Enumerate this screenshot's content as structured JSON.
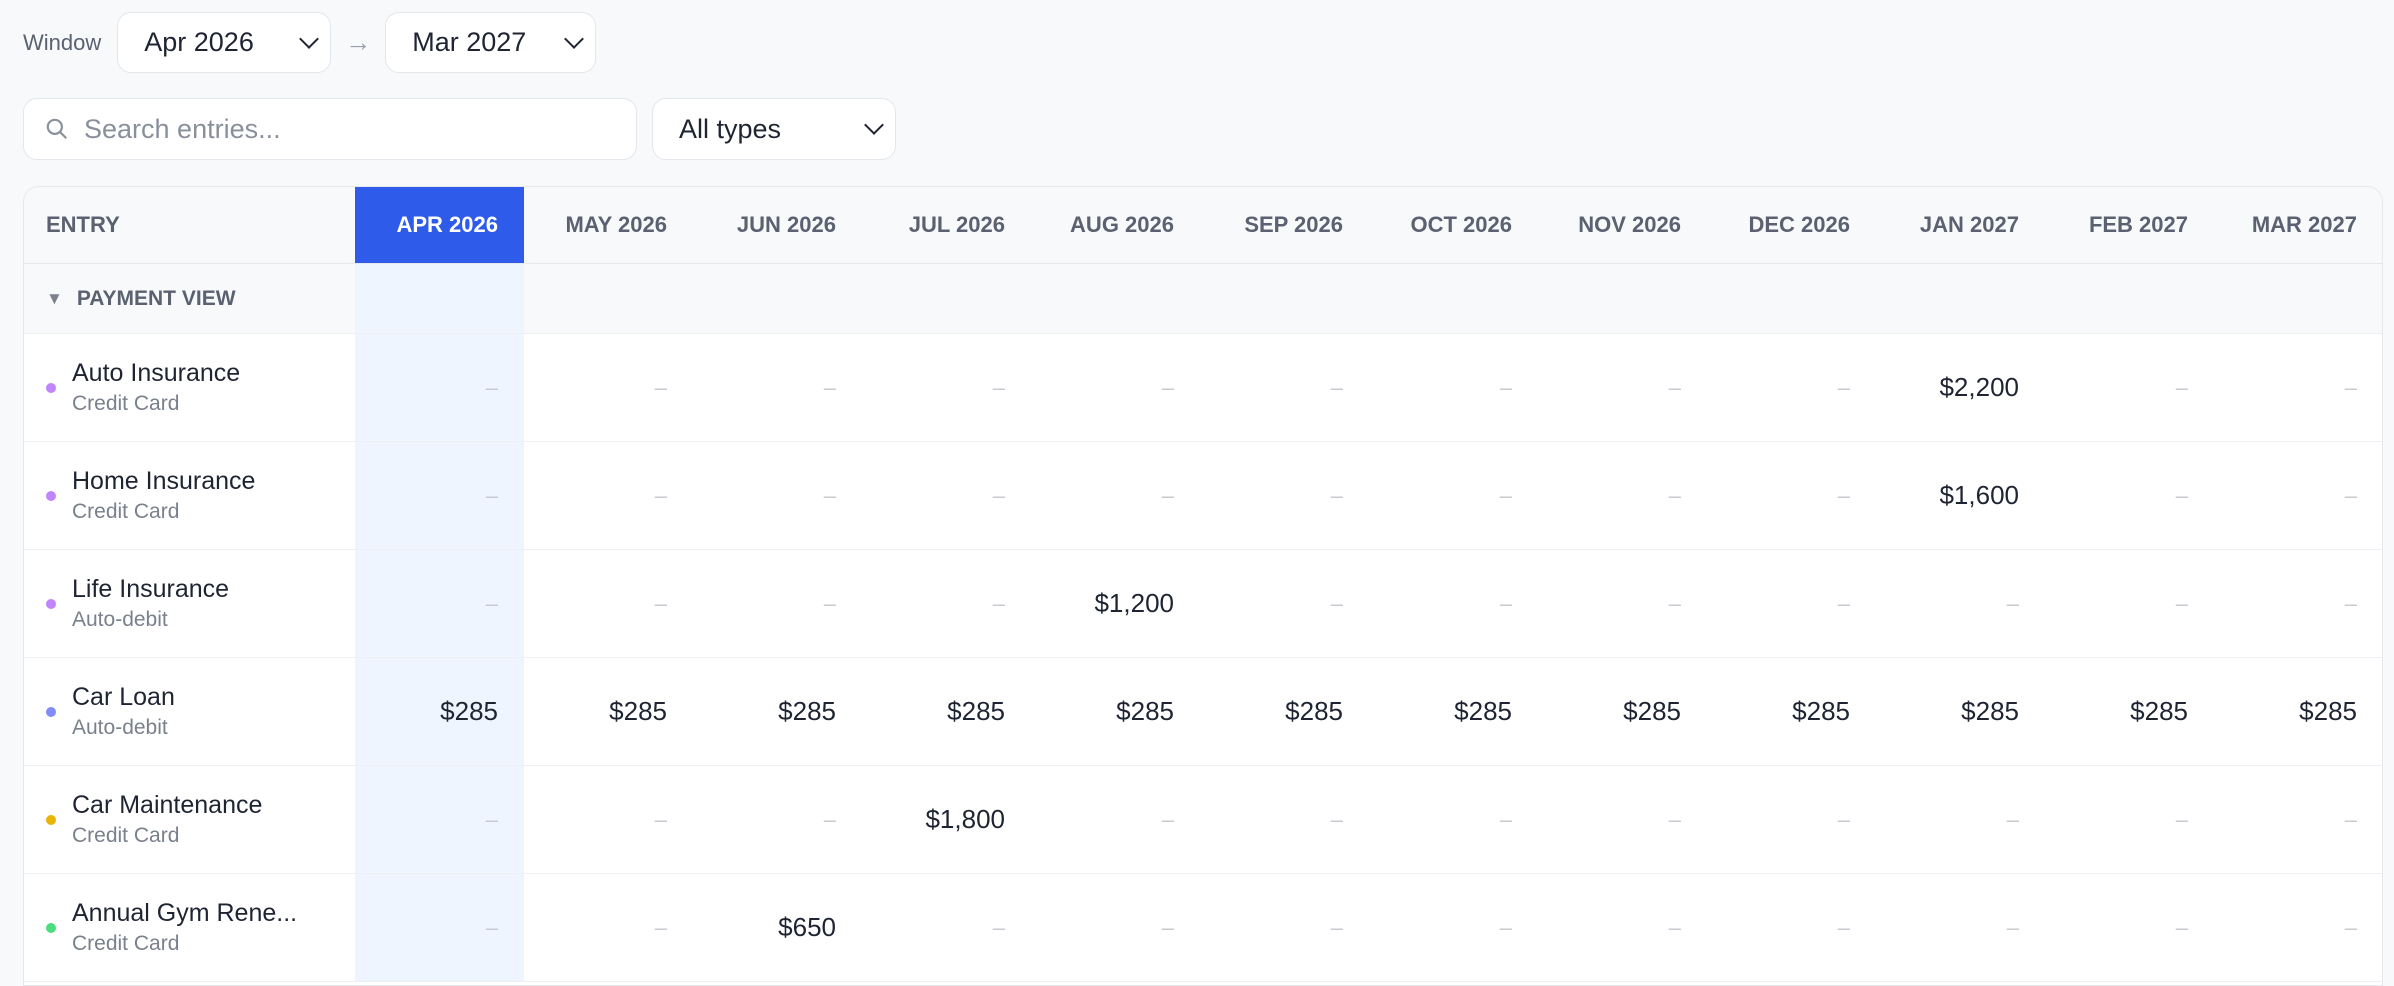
{
  "window": {
    "label": "Window",
    "start": "Apr 2026",
    "end": "Mar 2027",
    "arrow": "→"
  },
  "search": {
    "placeholder": "Search entries..."
  },
  "type_filter": {
    "selected": "All types"
  },
  "table": {
    "entry_header": "ENTRY",
    "months": [
      "APR 2026",
      "MAY 2026",
      "JUN 2026",
      "JUL 2026",
      "AUG 2026",
      "SEP 2026",
      "OCT 2026",
      "NOV 2026",
      "DEC 2026",
      "JAN 2027",
      "FEB 2027",
      "MAR 2027"
    ],
    "current_month_index": 0,
    "group": {
      "label": "PAYMENT VIEW",
      "expanded": true
    },
    "rows": [
      {
        "name": "Auto Insurance",
        "method": "Credit Card",
        "color": "#c084fc",
        "values": [
          "–",
          "–",
          "–",
          "–",
          "–",
          "–",
          "–",
          "–",
          "–",
          "$2,200",
          "–",
          "–"
        ]
      },
      {
        "name": "Home Insurance",
        "method": "Credit Card",
        "color": "#c084fc",
        "values": [
          "–",
          "–",
          "–",
          "–",
          "–",
          "–",
          "–",
          "–",
          "–",
          "$1,600",
          "–",
          "–"
        ]
      },
      {
        "name": "Life Insurance",
        "method": "Auto-debit",
        "color": "#c084fc",
        "values": [
          "–",
          "–",
          "–",
          "–",
          "$1,200",
          "–",
          "–",
          "–",
          "–",
          "–",
          "–",
          "–"
        ]
      },
      {
        "name": "Car Loan",
        "method": "Auto-debit",
        "color": "#818cf8",
        "values": [
          "$285",
          "$285",
          "$285",
          "$285",
          "$285",
          "$285",
          "$285",
          "$285",
          "$285",
          "$285",
          "$285",
          "$285"
        ]
      },
      {
        "name": "Car Maintenance",
        "method": "Credit Card",
        "color": "#eab308",
        "values": [
          "–",
          "–",
          "–",
          "$1,800",
          "–",
          "–",
          "–",
          "–",
          "–",
          "–",
          "–",
          "–"
        ]
      },
      {
        "name": "Annual Gym Rene...",
        "method": "Credit Card",
        "color": "#4ade80",
        "values": [
          "–",
          "–",
          "$650",
          "–",
          "–",
          "–",
          "–",
          "–",
          "–",
          "–",
          "–",
          "–"
        ]
      }
    ]
  }
}
